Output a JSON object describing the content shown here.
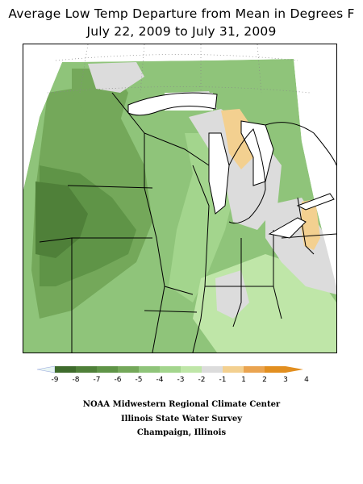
{
  "title": {
    "line1": "Average Low Temp Departure from Mean in Degrees F",
    "line2": "July 22, 2009 to July 31, 2009"
  },
  "map": {
    "region": "Midwest United States",
    "variable": "Average low temperature departure from mean",
    "units": "°F",
    "dominant_color": "#8fc47a"
  },
  "legend": {
    "labels": [
      "-9",
      "-8",
      "-7",
      "-6",
      "-5",
      "-4",
      "-3",
      "-2",
      "-1",
      "1",
      "2",
      "3",
      "4"
    ],
    "colors": [
      "#e8f4f4",
      "#3e6b2c",
      "#4f8039",
      "#5f9447",
      "#74a85a",
      "#8fc47a",
      "#a3d58d",
      "#bfe6a8",
      "#dcdcdc",
      "#f3d090",
      "#eaa450",
      "#e28f20"
    ]
  },
  "credits": {
    "line1": "NOAA Midwestern Regional Climate Center",
    "line2": "Illinois State Water Survey",
    "line3": "Champaign, Illinois"
  }
}
